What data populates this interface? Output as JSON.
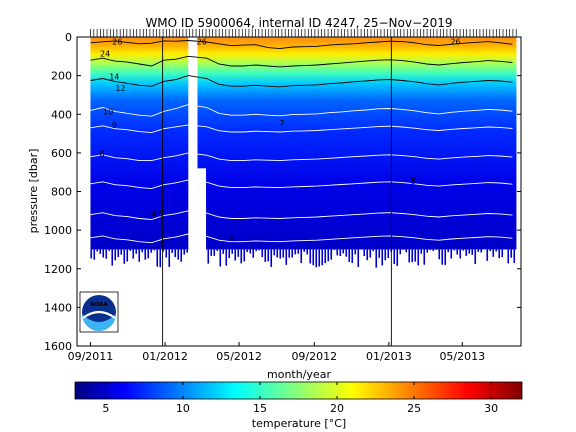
{
  "chart_data": {
    "type": "heatmap",
    "title": "WMO ID 5900064, internal ID 4247, 25−Nov−2019",
    "xlabel": "month/year",
    "ylabel": "pressure [dbar]",
    "colorbar_label": "temperature [°C]",
    "x_ticks": [
      "09/2011",
      "01/2012",
      "05/2012",
      "09/2012",
      "01/2013",
      "05/2013"
    ],
    "y_ticks": [
      "0",
      "200",
      "400",
      "600",
      "800",
      "1000",
      "1200",
      "1400",
      "1600"
    ],
    "ylim": [
      1600,
      0
    ],
    "colorbar_ticks": [
      "5",
      "10",
      "15",
      "20",
      "25",
      "30"
    ],
    "colorbar_range": [
      3,
      32
    ],
    "colormap": "jet",
    "contour_labels": [
      {
        "text": "26",
        "date": "2011-10-15",
        "p": 40
      },
      {
        "text": "26",
        "date": "2012-03-01",
        "p": 40
      },
      {
        "text": "26",
        "date": "2013-04-20",
        "p": 40
      },
      {
        "text": "24",
        "date": "2011-09-25",
        "p": 100
      },
      {
        "text": "14",
        "date": "2011-10-10",
        "p": 220
      },
      {
        "text": "12",
        "date": "2011-10-20",
        "p": 280
      },
      {
        "text": "10",
        "date": "2011-09-30",
        "p": 400
      },
      {
        "text": "9",
        "date": "2011-10-10",
        "p": 470
      },
      {
        "text": "7",
        "date": "2012-07-10",
        "p": 460
      },
      {
        "text": "6",
        "date": "2011-09-20",
        "p": 620
      },
      {
        "text": "5",
        "date": "2013-02-10",
        "p": 760
      },
      {
        "text": "4.5",
        "date": "2011-12-20",
        "p": 930
      },
      {
        "text": "4",
        "date": "2012-04-20",
        "p": 1060
      }
    ],
    "bottom_depth_dbar": 1100,
    "gaps": [
      {
        "start": "2012-02-08",
        "end": "2012-02-23",
        "max_p": 0
      },
      {
        "start": "2012-02-23",
        "end": "2012-03-08",
        "max_p": 680
      }
    ],
    "reference_lines": [
      "2011-12-28",
      "2013-01-05"
    ],
    "series": [
      {
        "name": "26",
        "values": [
          30,
          25,
          20,
          28,
          35,
          32,
          20,
          22,
          18,
          26,
          35,
          45,
          42,
          40,
          55,
          60,
          52,
          50,
          48,
          42,
          38,
          35,
          30,
          26,
          22,
          24,
          30,
          40,
          44,
          38,
          32,
          28,
          24,
          30,
          38
        ]
      },
      {
        "name": "20",
        "values": [
          120,
          110,
          125,
          130,
          140,
          150,
          120,
          115,
          100,
          110,
          140,
          150,
          150,
          145,
          150,
          155,
          150,
          148,
          145,
          140,
          135,
          130,
          125,
          120,
          118,
          122,
          130,
          140,
          145,
          138,
          132,
          128,
          122,
          126,
          132
        ]
      },
      {
        "name": "14",
        "values": [
          225,
          215,
          230,
          240,
          250,
          255,
          230,
          220,
          200,
          215,
          245,
          255,
          255,
          250,
          255,
          258,
          252,
          250,
          248,
          242,
          238,
          232,
          228,
          222,
          220,
          225,
          232,
          242,
          248,
          240,
          234,
          230,
          225,
          228,
          234
        ]
      },
      {
        "name": "10",
        "values": [
          380,
          365,
          385,
          395,
          405,
          410,
          385,
          370,
          350,
          365,
          395,
          405,
          405,
          400,
          405,
          408,
          402,
          400,
          398,
          392,
          388,
          382,
          378,
          372,
          370,
          375,
          382,
          392,
          398,
          390,
          384,
          380,
          375,
          378,
          384
        ]
      },
      {
        "name": "7",
        "values": [
          470,
          460,
          475,
          480,
          490,
          495,
          475,
          465,
          455,
          465,
          485,
          492,
          492,
          488,
          490,
          492,
          488,
          486,
          484,
          480,
          476,
          472,
          468,
          464,
          462,
          466,
          472,
          480,
          484,
          478,
          474,
          470,
          466,
          468,
          474
        ]
      },
      {
        "name": "6",
        "values": [
          620,
          610,
          625,
          630,
          640,
          640,
          625,
          615,
          600,
          612,
          632,
          640,
          640,
          636,
          638,
          640,
          636,
          634,
          632,
          628,
          624,
          620,
          616,
          612,
          610,
          614,
          620,
          628,
          632,
          626,
          622,
          618,
          614,
          616,
          622
        ]
      },
      {
        "name": "5",
        "values": [
          760,
          750,
          765,
          770,
          780,
          785,
          765,
          755,
          740,
          752,
          772,
          780,
          780,
          776,
          778,
          780,
          776,
          774,
          772,
          768,
          764,
          760,
          756,
          752,
          750,
          754,
          760,
          768,
          772,
          766,
          762,
          758,
          754,
          756,
          762
        ]
      },
      {
        "name": "4.5",
        "values": [
          920,
          910,
          925,
          930,
          940,
          945,
          925,
          915,
          900,
          912,
          932,
          940,
          940,
          936,
          938,
          940,
          936,
          934,
          932,
          928,
          924,
          920,
          916,
          912,
          910,
          914,
          920,
          928,
          932,
          926,
          922,
          918,
          914,
          916,
          922
        ]
      },
      {
        "name": "4",
        "values": [
          1040,
          1030,
          1045,
          1050,
          1060,
          1065,
          1045,
          1035,
          1020,
          1032,
          1052,
          1060,
          1060,
          1056,
          1058,
          1060,
          1056,
          1054,
          1052,
          1048,
          1044,
          1040,
          1036,
          1032,
          1030,
          1034,
          1040,
          1048,
          1052,
          1046,
          1042,
          1038,
          1034,
          1036,
          1042
        ]
      }
    ],
    "series_dates": [
      "2011-09-01",
      "2011-09-21",
      "2011-10-11",
      "2011-10-31",
      "2011-11-20",
      "2011-12-10",
      "2011-12-30",
      "2012-01-19",
      "2012-02-08",
      "2012-03-09",
      "2012-03-29",
      "2012-04-18",
      "2012-05-08",
      "2012-05-28",
      "2012-06-17",
      "2012-07-07",
      "2012-07-27",
      "2012-08-16",
      "2012-09-05",
      "2012-09-25",
      "2012-10-15",
      "2012-11-04",
      "2012-11-24",
      "2012-12-14",
      "2013-01-03",
      "2013-01-23",
      "2013-02-12",
      "2013-03-04",
      "2013-03-24",
      "2013-04-13",
      "2013-05-03",
      "2013-05-23",
      "2013-06-12",
      "2013-07-02",
      "2013-07-22"
    ]
  },
  "logo": {
    "text": "NOAA"
  }
}
